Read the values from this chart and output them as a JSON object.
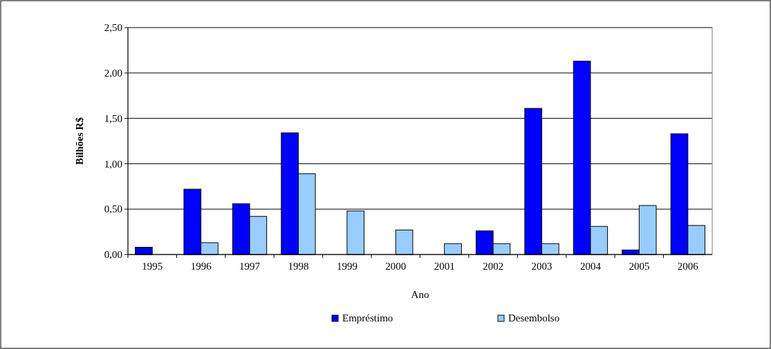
{
  "chart_data": {
    "type": "bar",
    "xlabel": "Ano",
    "ylabel": "Bilhões R$",
    "categories": [
      "1995",
      "1996",
      "1997",
      "1998",
      "1999",
      "2000",
      "2001",
      "2002",
      "2003",
      "2004",
      "2005",
      "2006"
    ],
    "series": [
      {
        "name": "Empréstimo",
        "color": "#0000ff",
        "values": [
          0.08,
          0.72,
          0.56,
          1.34,
          0,
          0,
          0,
          0.26,
          1.61,
          2.13,
          0.05,
          1.33
        ]
      },
      {
        "name": "Desembolso",
        "color": "#99ccff",
        "values": [
          0,
          0.13,
          0.42,
          0.89,
          0.48,
          0.27,
          0.12,
          0.12,
          0.12,
          0.31,
          0.54,
          0.32
        ]
      }
    ],
    "ylim": [
      0,
      2.5
    ],
    "yticks": [
      {
        "value": 0,
        "label": "0,00"
      },
      {
        "value": 0.5,
        "label": "0,50"
      },
      {
        "value": 1,
        "label": "1,00"
      },
      {
        "value": 1.5,
        "label": "1,50"
      },
      {
        "value": 2,
        "label": "2,00"
      },
      {
        "value": 2.5,
        "label": "2,50"
      }
    ],
    "grid": "y",
    "legend": "bottom"
  }
}
